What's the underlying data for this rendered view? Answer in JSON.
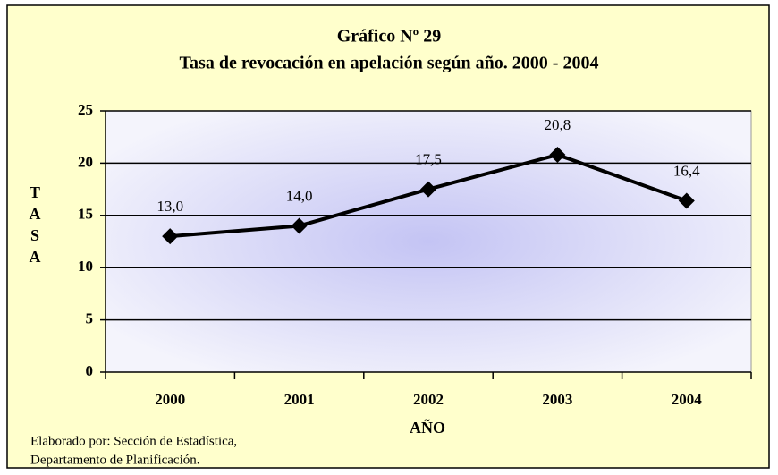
{
  "chart_data": {
    "type": "line",
    "title": "Gráfico Nº 29",
    "subtitle": "Tasa de revocación en apelación según año. 2000 - 2004",
    "ylabel": "TASA",
    "xlabel": "AÑO",
    "categories": [
      "2000",
      "2001",
      "2002",
      "2003",
      "2004"
    ],
    "values": [
      13.0,
      14.0,
      17.5,
      20.8,
      16.4
    ],
    "value_labels": [
      "13,0",
      "14,0",
      "17,5",
      "20,8",
      "16,4"
    ],
    "color": "#000000",
    "ylim": [
      0,
      25
    ],
    "yticks": [
      0,
      5,
      10,
      15,
      20,
      25
    ],
    "grid": true,
    "footnote": [
      "Elaborado por: Sección de Estadística,",
      "Departamento de Planificación."
    ]
  }
}
